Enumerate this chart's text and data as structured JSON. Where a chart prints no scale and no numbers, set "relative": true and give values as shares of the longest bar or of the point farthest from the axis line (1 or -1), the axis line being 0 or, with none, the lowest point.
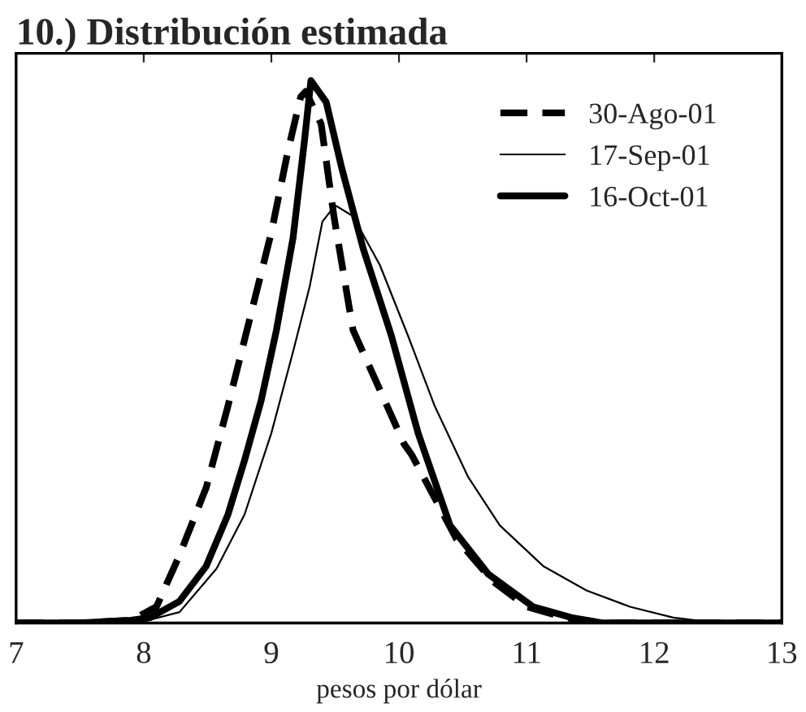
{
  "chart_data": {
    "type": "line",
    "title": "10.) Distribución estimada",
    "xlabel": "pesos por dólar",
    "xlim": [
      7,
      13
    ],
    "xticks": [
      7,
      8,
      9,
      10,
      11,
      12,
      13
    ],
    "relative": true,
    "legend": "top right",
    "grid": false,
    "series": [
      {
        "name": "30-Ago-01",
        "color": "#000000",
        "line_style": "dashed",
        "x": [
          7,
          7.5,
          7.9,
          8.1,
          8.28,
          8.49,
          8.66,
          8.83,
          9.0,
          9.13,
          9.23,
          9.27,
          9.39,
          9.49,
          9.64,
          9.85,
          10.04,
          10.1,
          10.45,
          10.74,
          11.0,
          11.3,
          11.6,
          12,
          13
        ],
        "values": [
          0,
          0,
          0.005,
          0.03,
          0.125,
          0.25,
          0.4,
          0.56,
          0.72,
          0.87,
          0.97,
          0.98,
          0.92,
          0.75,
          0.54,
          0.43,
          0.33,
          0.31,
          0.155,
          0.076,
          0.03,
          0.01,
          0,
          0,
          0
        ]
      },
      {
        "name": "17-Sep-01",
        "color": "#000000",
        "line_style": "solid",
        "x": [
          7,
          7.5,
          8.0,
          8.28,
          8.57,
          8.79,
          9.0,
          9.17,
          9.3,
          9.4,
          9.5,
          9.64,
          9.85,
          10.07,
          10.28,
          10.54,
          10.79,
          11.13,
          11.47,
          11.81,
          12.15,
          12.5,
          13
        ],
        "values": [
          0,
          0,
          0.003,
          0.02,
          0.1,
          0.2,
          0.35,
          0.5,
          0.62,
          0.74,
          0.77,
          0.75,
          0.66,
          0.53,
          0.4,
          0.27,
          0.18,
          0.105,
          0.06,
          0.03,
          0.01,
          0,
          0
        ]
      },
      {
        "name": "16-Oct-01",
        "color": "#000000",
        "line_style": "solid",
        "x": [
          7,
          7.5,
          7.9,
          8.05,
          8.28,
          8.49,
          8.66,
          8.79,
          8.92,
          9.04,
          9.17,
          9.26,
          9.31,
          9.43,
          9.55,
          9.72,
          9.94,
          10.15,
          10.4,
          10.7,
          11.05,
          11.35,
          11.6,
          12,
          13
        ],
        "values": [
          0,
          0,
          0.005,
          0.01,
          0.04,
          0.105,
          0.2,
          0.3,
          0.41,
          0.54,
          0.71,
          0.89,
          1.0,
          0.96,
          0.84,
          0.69,
          0.53,
          0.35,
          0.18,
          0.09,
          0.03,
          0.01,
          0,
          0,
          0
        ]
      }
    ]
  }
}
